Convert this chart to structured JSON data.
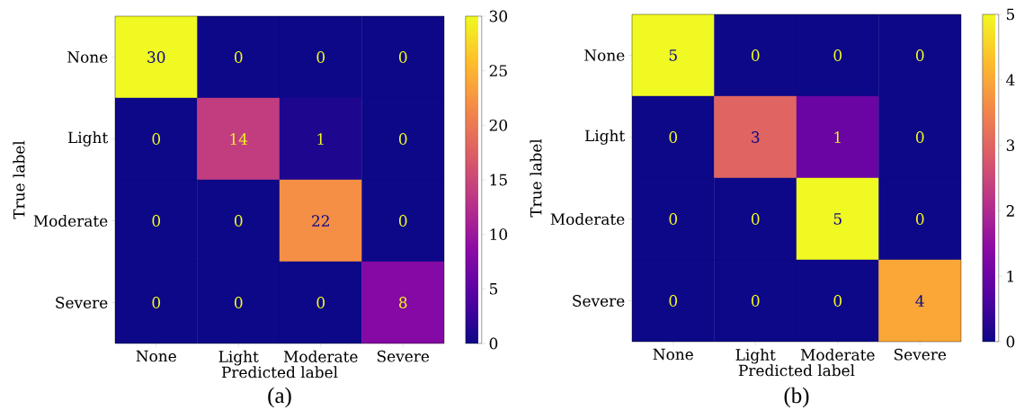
{
  "chart_data": [
    {
      "type": "heatmap",
      "xlabel": "Predicted label",
      "ylabel": "True label",
      "categories": [
        "None",
        "Light",
        "Moderate",
        "Severe"
      ],
      "y_categories": [
        "None",
        "Light",
        "Moderate",
        "Severe"
      ],
      "cells": [
        [
          30,
          0,
          0,
          0
        ],
        [
          0,
          14,
          1,
          0
        ],
        [
          0,
          0,
          22,
          0
        ],
        [
          0,
          0,
          0,
          8
        ]
      ],
      "clim": [
        0,
        30
      ],
      "cticks": [
        0,
        5,
        10,
        15,
        20,
        25,
        30
      ],
      "data_labels": true,
      "annotations": [
        "(a)"
      ]
    },
    {
      "type": "heatmap",
      "xlabel": "Predicted label",
      "ylabel": "True label",
      "categories": [
        "None",
        "Light",
        "Moderate",
        "Severe"
      ],
      "y_categories": [
        "None",
        "Light",
        "Moderate",
        "Severe"
      ],
      "cells": [
        [
          5,
          0,
          0,
          0
        ],
        [
          0,
          3,
          1,
          0
        ],
        [
          0,
          0,
          5,
          0
        ],
        [
          0,
          0,
          0,
          4
        ]
      ],
      "clim": [
        0,
        5
      ],
      "cticks": [
        0,
        1,
        2,
        3,
        4,
        5
      ],
      "data_labels": true,
      "annotations": [
        "(b)"
      ]
    }
  ]
}
